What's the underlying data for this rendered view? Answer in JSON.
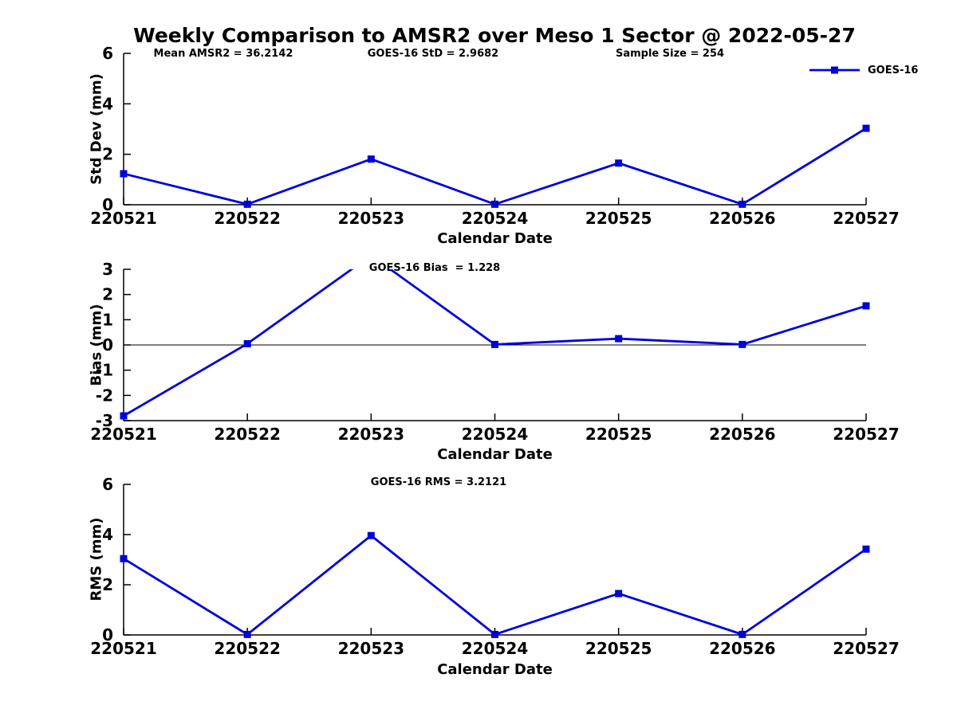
{
  "title": "Weekly Comparison to AMSR2 over Meso 1 Sector @ 2022-05-27",
  "colors": {
    "series": "#0000DC",
    "axis": "#000000",
    "text": "#000000"
  },
  "legend": {
    "label": "GOES-16"
  },
  "chart_data": [
    {
      "type": "line",
      "panel": "std-dev",
      "ylabel": "Std Dev (mm)",
      "xlabel": "Calendar Date",
      "categories": [
        "220521",
        "220522",
        "220523",
        "220524",
        "220525",
        "220526",
        "220527"
      ],
      "series": [
        {
          "name": "GOES-16",
          "values": [
            1.23,
            0.02,
            1.81,
            0.02,
            1.65,
            0.02,
            3.03
          ]
        }
      ],
      "ylim": [
        0,
        6
      ],
      "yticks": [
        0,
        2,
        4,
        6
      ],
      "grid": false,
      "legend_position": "top-right",
      "annotations": [
        "Mean AMSR2 = 36.2142",
        "GOES-16 StD = 2.9682",
        "Sample Size = 254"
      ]
    },
    {
      "type": "line",
      "panel": "bias",
      "ylabel": "Bias (mm)",
      "xlabel": "Calendar Date",
      "categories": [
        "220521",
        "220522",
        "220523",
        "220524",
        "220525",
        "220526",
        "220527"
      ],
      "series": [
        {
          "name": "GOES-16",
          "values": [
            -2.81,
            0.05,
            3.55,
            0.02,
            0.25,
            0.02,
            1.55
          ]
        }
      ],
      "ylim": [
        -3,
        3
      ],
      "yticks": [
        -3,
        -2,
        -1,
        0,
        1,
        2,
        3
      ],
      "grid": false,
      "zero_line": true,
      "annotations": [
        "GOES-16 Bias  = 1.228"
      ]
    },
    {
      "type": "line",
      "panel": "rms",
      "ylabel": "RMS (mm)",
      "xlabel": "Calendar Date",
      "categories": [
        "220521",
        "220522",
        "220523",
        "220524",
        "220525",
        "220526",
        "220527"
      ],
      "series": [
        {
          "name": "GOES-16",
          "values": [
            3.04,
            0.02,
            3.96,
            0.02,
            1.65,
            0.02,
            3.42
          ]
        }
      ],
      "ylim": [
        0,
        6
      ],
      "yticks": [
        0,
        2,
        4,
        6
      ],
      "grid": false,
      "annotations": [
        "GOES-16 RMS = 3.2121"
      ]
    }
  ]
}
